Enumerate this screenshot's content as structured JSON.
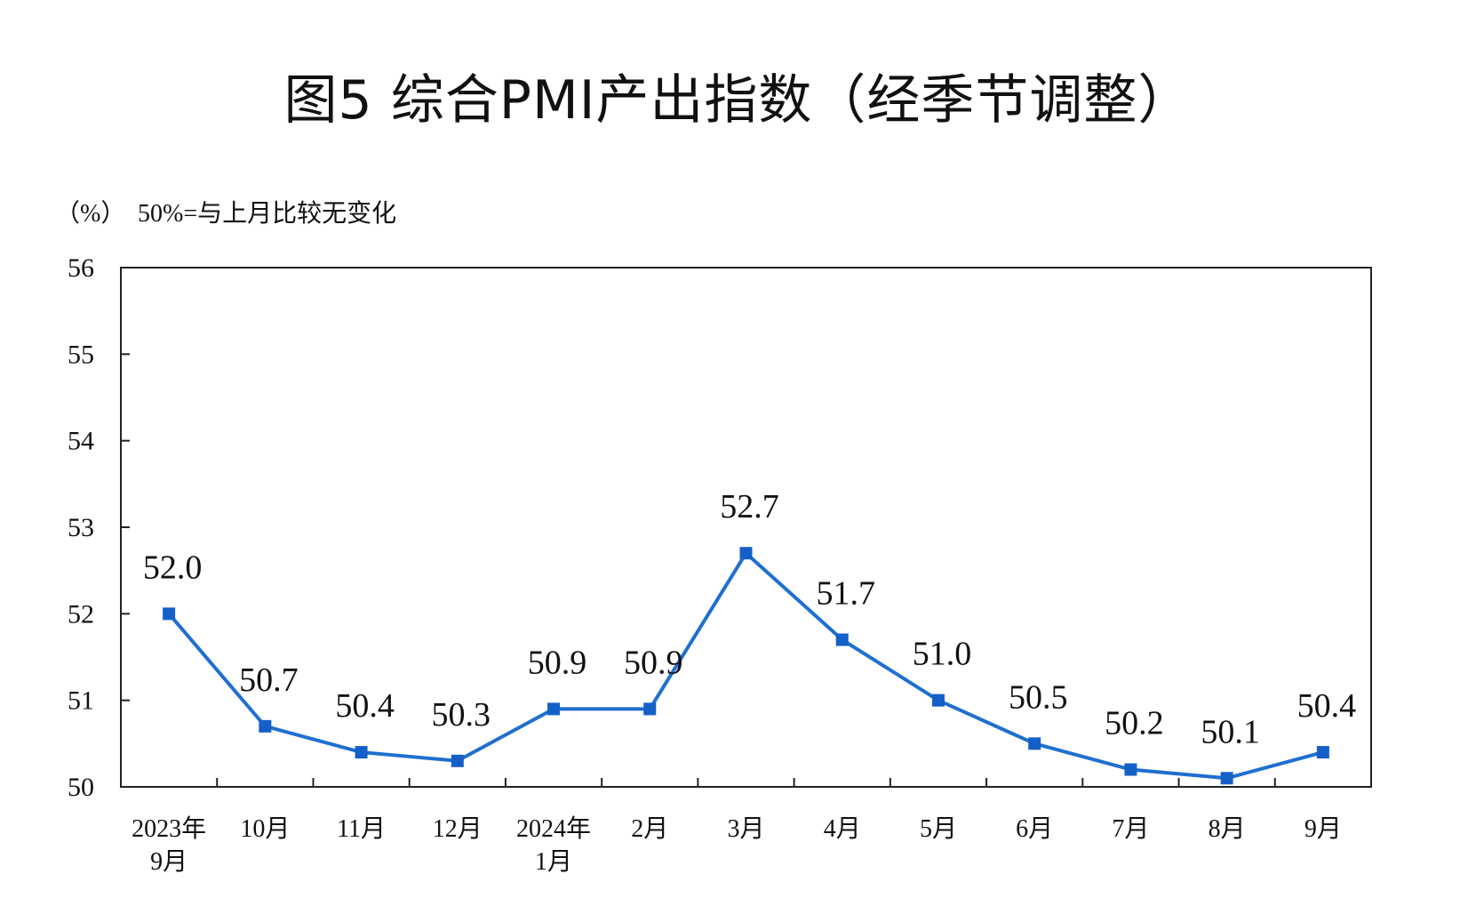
{
  "chart_data": {
    "type": "line",
    "title": "图5  综合PMI产出指数（经季节调整）",
    "unit_label": "（%）",
    "note": "50%=与上月比较无变化",
    "categories": [
      [
        "2023年",
        "9月"
      ],
      [
        "10月"
      ],
      [
        "11月"
      ],
      [
        "12月"
      ],
      [
        "2024年",
        "1月"
      ],
      [
        "2月"
      ],
      [
        "3月"
      ],
      [
        "4月"
      ],
      [
        "5月"
      ],
      [
        "6月"
      ],
      [
        "7月"
      ],
      [
        "8月"
      ],
      [
        "9月"
      ]
    ],
    "values": [
      52.0,
      50.7,
      50.4,
      50.3,
      50.9,
      50.9,
      52.7,
      51.7,
      51.0,
      50.5,
      50.2,
      50.1,
      50.4
    ],
    "data_labels": [
      "52.0",
      "50.7",
      "50.4",
      "50.3",
      "50.9",
      "50.9",
      "52.7",
      "51.7",
      "51.0",
      "50.5",
      "50.2",
      "50.1",
      "50.4"
    ],
    "ylim": [
      50,
      56
    ],
    "yticks": [
      50,
      51,
      52,
      53,
      54,
      55,
      56
    ],
    "grid": false,
    "legend": "none",
    "colors": {
      "line": "#1f6fd0",
      "marker": "#1560c8",
      "axis": "#222222"
    }
  }
}
